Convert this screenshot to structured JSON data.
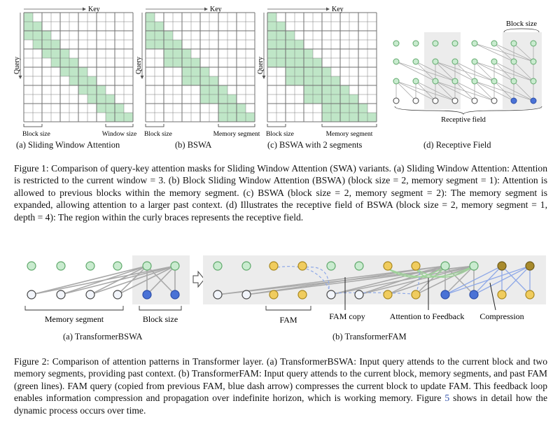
{
  "figure1": {
    "panels": [
      {
        "axis_key": "Key",
        "axis_query": "Query",
        "label_left": "Block size",
        "label_right": "Window size",
        "subcaption": "(a) Sliding Window Attention"
      },
      {
        "axis_key": "Key",
        "axis_query": "Query",
        "label_left": "Block size",
        "label_right": "Memory segment",
        "subcaption": "(b) BSWA"
      },
      {
        "axis_key": "Key",
        "axis_query": "Query",
        "label_left": "Block size",
        "label_right": "Memory segment",
        "subcaption": "(c) BSWA with 2 segments"
      }
    ],
    "receptive": {
      "block_size_label": "Block size",
      "receptive_label": "Receptive field",
      "subcaption": "(d) Receptive Field"
    },
    "caption": "Figure 1: Comparison of query-key attention masks for Sliding Window Attention (SWA) variants. (a) Sliding Window Attention: Attention is restricted to the current window = 3. (b) Block Sliding Window Attention (BSWA) (block size = 2, memory segment = 1): Attention is allowed to previous blocks within the memory segment. (c) BSWA (block size = 2, memory segment = 2): The memory segment is expanded, allowing attention to a larger past context. (d) Illustrates the receptive field of BSWA (block size = 2, memory segment = 1, depth = 4): The region within the curly braces represents the receptive field."
  },
  "figure2": {
    "bswa": {
      "memory_label": "Memory segment",
      "block_label": "Block size",
      "subcaption": "(a) TransformerBSWA"
    },
    "fam": {
      "fam_label": "FAM",
      "fam_copy_label": "FAM copy",
      "feedback_label": "Attention to Feedback",
      "compression_label": "Compression",
      "subcaption": "(b) TransformerFAM"
    },
    "caption_before_ref": "Figure 2: Comparison of attention patterns in Transformer layer. (a) TransformerBSWA: Input query attends to the current block and two memory segments, providing past context. (b) TransformerFAM: Input query attends to the current block, memory segments, and past FAM (green lines). FAM query (copied from previous FAM, blue dash arrow) compresses the current block to update FAM. This feedback loop enables information compression and propagation over indefinite horizon, which is working memory. Figure ",
    "caption_ref": "5",
    "caption_after_ref": " shows in detail how the dynamic process occurs over time."
  },
  "colors": {
    "green": "#c9ebcf",
    "green_edge": "#5ea86a",
    "blue": "#4a72d6",
    "yellow": "#f0cc5e",
    "brown": "#a88a2c",
    "grid": "#6f6f6f",
    "mask": "#bfe6c7",
    "shade": "#ececec"
  }
}
